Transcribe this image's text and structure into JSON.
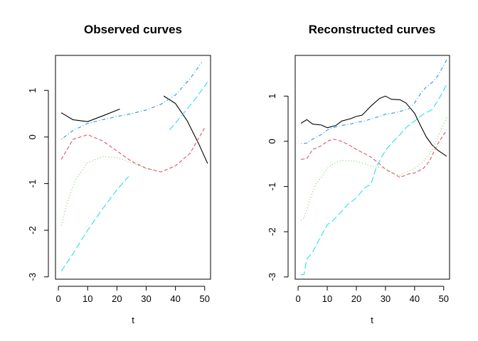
{
  "chart_data": [
    {
      "type": "line",
      "title": "Observed curves",
      "xlabel": "t",
      "ylabel": "",
      "xlim": [
        -1,
        52
      ],
      "ylim": [
        -3.05,
        1.75
      ],
      "xticks": [
        "0",
        "10",
        "20",
        "30",
        "40",
        "50"
      ],
      "yticks": [
        "-3",
        "-2",
        "-1",
        "0",
        "1"
      ],
      "series": [
        {
          "color": "#000000",
          "dash": "solid",
          "x": [
            1,
            5,
            10,
            15,
            21
          ],
          "y": [
            0.52,
            0.37,
            0.33,
            0.45,
            0.6
          ]
        },
        {
          "color": "#000000",
          "dash": "solid",
          "x": [
            36,
            40,
            44,
            48,
            51
          ],
          "y": [
            0.88,
            0.72,
            0.35,
            -0.15,
            -0.57
          ]
        },
        {
          "color": "#df536b",
          "dash": "dashed",
          "x": [
            1,
            5,
            10,
            15,
            20,
            25,
            30,
            35,
            40,
            45,
            50
          ],
          "y": [
            -0.48,
            -0.05,
            0.05,
            -0.08,
            -0.3,
            -0.52,
            -0.67,
            -0.75,
            -0.62,
            -0.35,
            0.2
          ]
        },
        {
          "color": "#61d04f",
          "dash": "dotted",
          "x": [
            1,
            3,
            6,
            10,
            15,
            20,
            25,
            30,
            33
          ],
          "y": [
            -1.9,
            -1.4,
            -0.9,
            -0.55,
            -0.42,
            -0.44,
            -0.55,
            -0.68,
            -0.72
          ]
        },
        {
          "color": "#2297e6",
          "dash": "dotdash",
          "x": [
            1,
            5,
            10,
            15,
            20,
            25,
            30,
            35,
            40,
            45,
            49
          ],
          "y": [
            -0.05,
            0.14,
            0.29,
            0.37,
            0.44,
            0.5,
            0.58,
            0.7,
            0.9,
            1.25,
            1.6
          ]
        },
        {
          "color": "#28e2e5",
          "dash": "longdash",
          "x": [
            1,
            5,
            10,
            15,
            20,
            24
          ],
          "y": [
            -2.88,
            -2.5,
            -2.0,
            -1.55,
            -1.13,
            -0.85
          ]
        },
        {
          "color": "#28e2e5",
          "dash": "longdash",
          "x": [
            38,
            42,
            46,
            51
          ],
          "y": [
            0.15,
            0.45,
            0.75,
            1.18
          ]
        }
      ]
    },
    {
      "type": "line",
      "title": "Reconstructed curves",
      "xlabel": "t",
      "ylabel": "",
      "xlim": [
        -1,
        52
      ],
      "ylim": [
        -3.05,
        1.9
      ],
      "xticks": [
        "0",
        "10",
        "20",
        "30",
        "40",
        "50"
      ],
      "yticks": [
        "-3",
        "-2",
        "-1",
        "0",
        "1"
      ],
      "series": [
        {
          "color": "#000000",
          "dash": "solid",
          "x": [
            1,
            3,
            5,
            8,
            10,
            13,
            15,
            18,
            20,
            22,
            25,
            28,
            30,
            32,
            35,
            37,
            40,
            42,
            44,
            46,
            48,
            51
          ],
          "y": [
            0.4,
            0.48,
            0.38,
            0.36,
            0.3,
            0.35,
            0.45,
            0.5,
            0.55,
            0.58,
            0.78,
            0.95,
            1.0,
            0.93,
            0.92,
            0.85,
            0.62,
            0.35,
            0.1,
            -0.08,
            -0.2,
            -0.33
          ]
        },
        {
          "color": "#df536b",
          "dash": "dashed",
          "x": [
            1,
            3,
            5,
            8,
            10,
            12,
            15,
            18,
            20,
            23,
            25,
            28,
            30,
            33,
            35,
            38,
            40,
            43,
            45,
            48,
            51
          ],
          "y": [
            -0.4,
            -0.38,
            -0.18,
            -0.1,
            0.0,
            0.05,
            0.0,
            -0.1,
            -0.18,
            -0.28,
            -0.35,
            -0.5,
            -0.62,
            -0.72,
            -0.8,
            -0.72,
            -0.7,
            -0.6,
            -0.45,
            -0.05,
            0.25
          ]
        },
        {
          "color": "#61d04f",
          "dash": "dotted",
          "x": [
            1,
            2,
            4,
            6,
            8,
            10,
            12,
            15,
            18,
            20,
            23,
            25,
            28,
            30,
            33,
            35,
            38,
            40,
            43,
            46,
            48,
            51
          ],
          "y": [
            -1.75,
            -1.7,
            -1.3,
            -0.95,
            -0.8,
            -0.6,
            -0.5,
            -0.42,
            -0.43,
            -0.45,
            -0.5,
            -0.55,
            -0.58,
            -0.6,
            -0.72,
            -0.75,
            -0.65,
            -0.6,
            -0.45,
            -0.2,
            0.1,
            0.52
          ]
        },
        {
          "color": "#2297e6",
          "dash": "dotdash",
          "x": [
            1,
            3,
            5,
            8,
            10,
            13,
            15,
            18,
            20,
            23,
            25,
            28,
            30,
            33,
            35,
            38,
            40,
            42,
            44,
            46,
            48,
            51
          ],
          "y": [
            -0.05,
            -0.04,
            0.05,
            0.15,
            0.25,
            0.32,
            0.35,
            0.38,
            0.42,
            0.45,
            0.5,
            0.55,
            0.6,
            0.63,
            0.66,
            0.72,
            0.85,
            1.05,
            1.2,
            1.3,
            1.45,
            1.8
          ]
        },
        {
          "color": "#28e2e5",
          "dash": "longdash",
          "x": [
            1,
            2,
            3,
            5,
            7,
            10,
            12,
            15,
            17,
            20,
            23,
            25,
            27,
            30,
            32,
            35,
            37,
            40,
            43,
            46,
            48,
            51
          ],
          "y": [
            -2.95,
            -2.95,
            -2.6,
            -2.45,
            -2.2,
            -1.85,
            -1.75,
            -1.55,
            -1.4,
            -1.25,
            -1.02,
            -0.95,
            -0.55,
            -0.2,
            -0.05,
            0.15,
            0.3,
            0.45,
            0.6,
            0.7,
            0.9,
            1.25
          ]
        }
      ]
    }
  ]
}
